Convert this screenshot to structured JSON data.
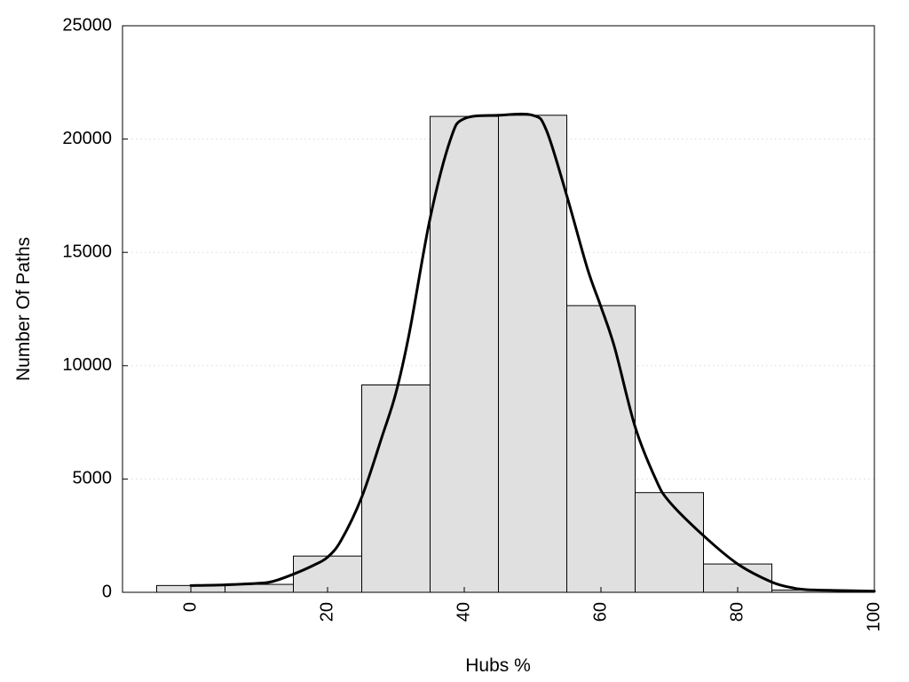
{
  "chart_data": {
    "type": "bar",
    "title": "",
    "xlabel": "Hubs %",
    "ylabel": "Number Of Paths",
    "xlim": [
      -10,
      100
    ],
    "ylim": [
      0,
      25000
    ],
    "x_ticks": [
      0,
      20,
      40,
      60,
      80,
      100
    ],
    "y_ticks": [
      0,
      5000,
      10000,
      15000,
      20000,
      25000
    ],
    "grid": "horizontal dotted",
    "bar_width": 10,
    "bars": {
      "x": [
        0,
        10,
        20,
        30,
        40,
        50,
        60,
        70,
        80,
        90
      ],
      "values": [
        300,
        350,
        1600,
        9150,
        21000,
        21050,
        12650,
        4400,
        1250,
        100
      ]
    },
    "curve": {
      "x": [
        0,
        5,
        10,
        12,
        15,
        18,
        20,
        22,
        25,
        28,
        30,
        32,
        35,
        38,
        40,
        45,
        50,
        52,
        55,
        58,
        60,
        62,
        65,
        68,
        70,
        75,
        80,
        85,
        88,
        90,
        95,
        100
      ],
      "y": [
        300,
        330,
        400,
        480,
        800,
        1200,
        1550,
        2300,
        4200,
        6900,
        8800,
        11500,
        16500,
        20000,
        20900,
        21050,
        21050,
        20400,
        17500,
        14300,
        12600,
        10800,
        7300,
        5000,
        4000,
        2500,
        1250,
        450,
        200,
        120,
        80,
        50
      ],
      "color": "#000000"
    },
    "colors": {
      "bar_fill": "#e0e0e0",
      "bar_edge": "#000000"
    }
  }
}
